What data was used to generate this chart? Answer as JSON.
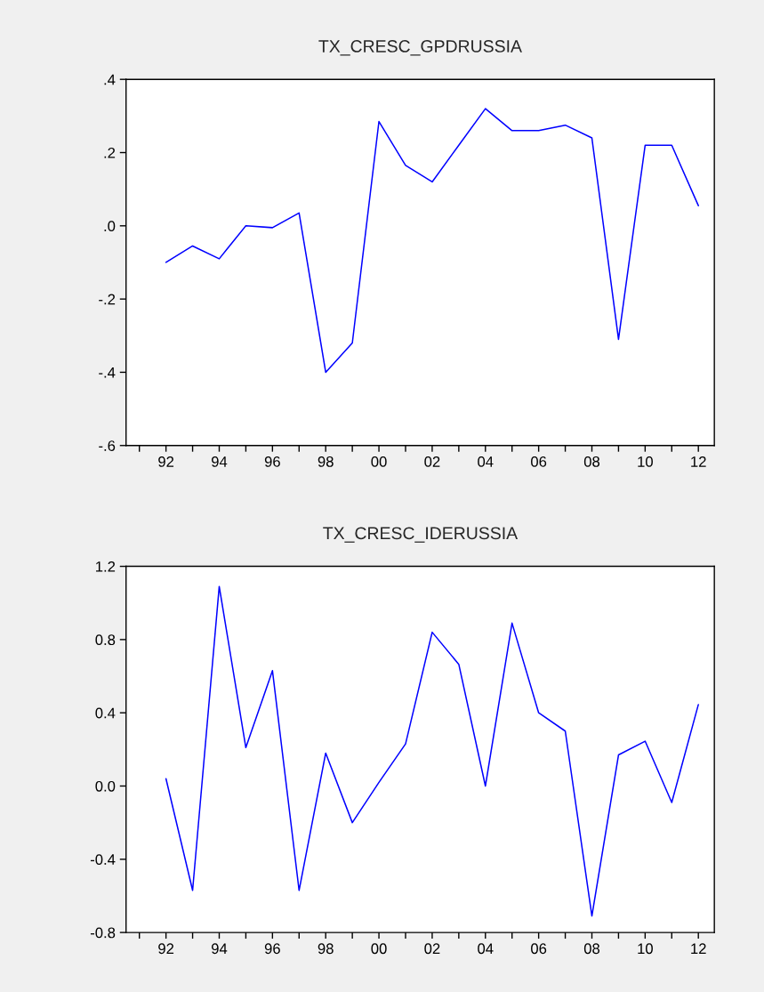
{
  "chart_data": [
    {
      "type": "line",
      "title": "TX_CRESC_GPDRUSSIA",
      "x": [
        1992,
        1993,
        1994,
        1995,
        1996,
        1997,
        1998,
        1999,
        2000,
        2001,
        2002,
        2003,
        2004,
        2005,
        2006,
        2007,
        2008,
        2009,
        2010,
        2011,
        2012
      ],
      "series": [
        {
          "color": "#0000ff",
          "values": [
            -0.1,
            -0.055,
            -0.09,
            0.0,
            -0.005,
            0.035,
            -0.4,
            -0.32,
            0.285,
            0.165,
            0.12,
            0.22,
            0.32,
            0.26,
            0.26,
            0.275,
            0.24,
            -0.31,
            0.22,
            0.22,
            0.055
          ]
        }
      ],
      "xlim": [
        1990.5,
        2012.6
      ],
      "xticks": [
        {
          "value": 1991,
          "label": null
        },
        {
          "value": 1992,
          "label": "92"
        },
        {
          "value": 1993,
          "label": null
        },
        {
          "value": 1994,
          "label": "94"
        },
        {
          "value": 1995,
          "label": null
        },
        {
          "value": 1996,
          "label": "96"
        },
        {
          "value": 1997,
          "label": null
        },
        {
          "value": 1998,
          "label": "98"
        },
        {
          "value": 1999,
          "label": null
        },
        {
          "value": 2000,
          "label": "00"
        },
        {
          "value": 2001,
          "label": null
        },
        {
          "value": 2002,
          "label": "02"
        },
        {
          "value": 2003,
          "label": null
        },
        {
          "value": 2004,
          "label": "04"
        },
        {
          "value": 2005,
          "label": null
        },
        {
          "value": 2006,
          "label": "06"
        },
        {
          "value": 2007,
          "label": null
        },
        {
          "value": 2008,
          "label": "08"
        },
        {
          "value": 2009,
          "label": null
        },
        {
          "value": 2010,
          "label": "10"
        },
        {
          "value": 2011,
          "label": null
        },
        {
          "value": 2012,
          "label": "12"
        }
      ],
      "ylim": [
        -0.6,
        0.4
      ],
      "yticks": [
        {
          "value": -0.6,
          "label": "-.6"
        },
        {
          "value": -0.4,
          "label": "-.4"
        },
        {
          "value": -0.2,
          "label": "-.2"
        },
        {
          "value": 0.0,
          "label": ".0"
        },
        {
          "value": 0.2,
          "label": ".2"
        },
        {
          "value": 0.4,
          "label": ".4"
        }
      ],
      "grid": false,
      "legend": false,
      "line_style": "solid",
      "marker": "none"
    },
    {
      "type": "line",
      "title": "TX_CRESC_IDERUSSIA",
      "x": [
        1992,
        1993,
        1994,
        1995,
        1996,
        1997,
        1998,
        1999,
        2000,
        2001,
        2002,
        2003,
        2004,
        2005,
        2006,
        2007,
        2008,
        2009,
        2010,
        2011,
        2012
      ],
      "series": [
        {
          "color": "#0000ff",
          "values": [
            0.04,
            -0.57,
            1.09,
            0.21,
            0.63,
            -0.57,
            0.18,
            -0.2,
            0.02,
            0.23,
            0.84,
            0.665,
            0.0,
            0.89,
            0.4,
            0.3,
            -0.71,
            0.17,
            0.245,
            -0.09,
            0.445
          ]
        }
      ],
      "xlim": [
        1990.5,
        2012.6
      ],
      "xticks": [
        {
          "value": 1991,
          "label": null
        },
        {
          "value": 1992,
          "label": "92"
        },
        {
          "value": 1993,
          "label": null
        },
        {
          "value": 1994,
          "label": "94"
        },
        {
          "value": 1995,
          "label": null
        },
        {
          "value": 1996,
          "label": "96"
        },
        {
          "value": 1997,
          "label": null
        },
        {
          "value": 1998,
          "label": "98"
        },
        {
          "value": 1999,
          "label": null
        },
        {
          "value": 2000,
          "label": "00"
        },
        {
          "value": 2001,
          "label": null
        },
        {
          "value": 2002,
          "label": "02"
        },
        {
          "value": 2003,
          "label": null
        },
        {
          "value": 2004,
          "label": "04"
        },
        {
          "value": 2005,
          "label": null
        },
        {
          "value": 2006,
          "label": "06"
        },
        {
          "value": 2007,
          "label": null
        },
        {
          "value": 2008,
          "label": "08"
        },
        {
          "value": 2009,
          "label": null
        },
        {
          "value": 2010,
          "label": "10"
        },
        {
          "value": 2011,
          "label": null
        },
        {
          "value": 2012,
          "label": "12"
        }
      ],
      "ylim": [
        -0.8,
        1.2
      ],
      "yticks": [
        {
          "value": -0.8,
          "label": "-0.8"
        },
        {
          "value": -0.4,
          "label": "-0.4"
        },
        {
          "value": 0.0,
          "label": "0.0"
        },
        {
          "value": 0.4,
          "label": "0.4"
        },
        {
          "value": 0.8,
          "label": "0.8"
        },
        {
          "value": 1.2,
          "label": "1.2"
        }
      ],
      "grid": false,
      "legend": false,
      "line_style": "solid",
      "marker": "none"
    }
  ]
}
